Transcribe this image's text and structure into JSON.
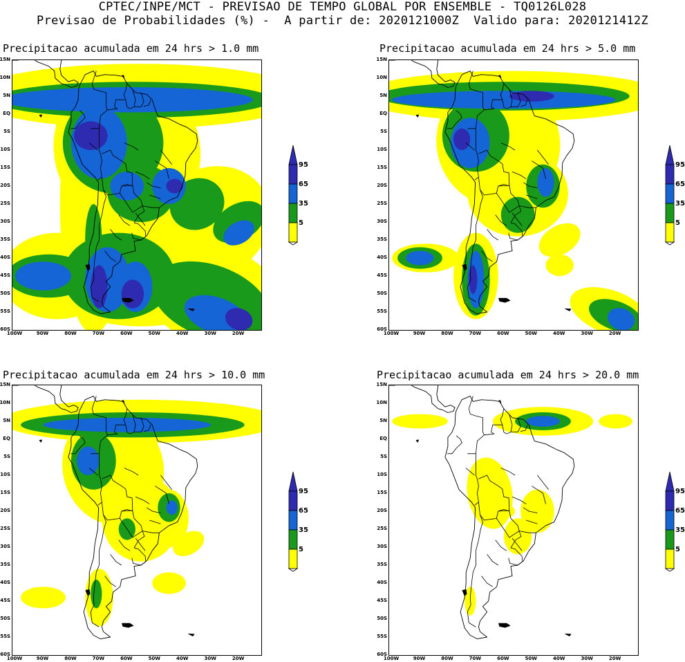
{
  "header": {
    "line1": "CPTEC/INPE/MCT - PREVISAO DE TEMPO GLOBAL POR ENSEMBLE - TQ0126L028",
    "line2": "Previsao de Probabilidades (%) -  A partir de: 2020121000Z  Valido para: 2020121412Z"
  },
  "axes": {
    "lat_labels": [
      "15N",
      "10N",
      "5N",
      "EQ",
      "5S",
      "10S",
      "15S",
      "20S",
      "25S",
      "30S",
      "35S",
      "40S",
      "45S",
      "50S",
      "55S",
      "60S"
    ],
    "lon_labels": [
      "100W",
      "90W",
      "80W",
      "70W",
      "60W",
      "50W",
      "40W",
      "30W",
      "20W"
    ]
  },
  "colorbar": {
    "labels": [
      "95",
      "65",
      "35",
      "5"
    ],
    "colors": {
      "c5": "#ffff00",
      "c35": "#1a9a1a",
      "c65": "#1565d6",
      "c95": "#2e2bb0"
    }
  },
  "panels": [
    {
      "title": "Precipitacao acumulada em 24 hrs > 1.0 mm",
      "threshold_mm": 1.0
    },
    {
      "title": "Precipitacao acumulada em 24 hrs > 5.0 mm",
      "threshold_mm": 5.0
    },
    {
      "title": "Precipitacao acumulada em 24 hrs > 10.0 mm",
      "threshold_mm": 10.0
    },
    {
      "title": "Precipitacao acumulada em 24 hrs > 20.0 mm",
      "threshold_mm": 20.0
    }
  ],
  "map_extent": {
    "lon_min": -101,
    "lon_max": -12,
    "lat_min": -60,
    "lat_max": 15
  }
}
